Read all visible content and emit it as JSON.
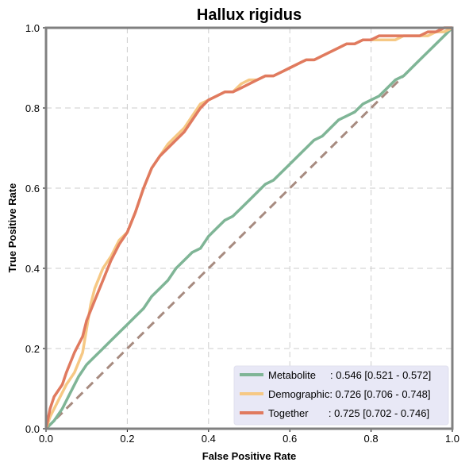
{
  "chart_data": {
    "type": "line",
    "title": "Hallux rigidus",
    "xlabel": "False Positive Rate",
    "ylabel": "True Positive Rate",
    "xlim": [
      0,
      1
    ],
    "ylim": [
      0,
      1
    ],
    "x_ticks": [
      "0.0",
      "0.2",
      "0.4",
      "0.6",
      "0.8",
      "1.0"
    ],
    "y_ticks": [
      "0.0",
      "0.2",
      "0.4",
      "0.6",
      "0.8",
      "1.0"
    ],
    "grid": true,
    "legend_position": "bottom-right",
    "series": [
      {
        "name": "Metabolite",
        "legend_label": "Metabolite     : 0.546 [0.521 - 0.572]",
        "color": "#7fb596",
        "points": [
          [
            0,
            0
          ],
          [
            0.02,
            0.02
          ],
          [
            0.04,
            0.05
          ],
          [
            0.06,
            0.09
          ],
          [
            0.08,
            0.13
          ],
          [
            0.1,
            0.16
          ],
          [
            0.12,
            0.18
          ],
          [
            0.14,
            0.2
          ],
          [
            0.16,
            0.22
          ],
          [
            0.18,
            0.24
          ],
          [
            0.2,
            0.26
          ],
          [
            0.22,
            0.28
          ],
          [
            0.24,
            0.3
          ],
          [
            0.26,
            0.33
          ],
          [
            0.28,
            0.35
          ],
          [
            0.3,
            0.37
          ],
          [
            0.32,
            0.4
          ],
          [
            0.34,
            0.42
          ],
          [
            0.36,
            0.44
          ],
          [
            0.38,
            0.45
          ],
          [
            0.4,
            0.48
          ],
          [
            0.42,
            0.5
          ],
          [
            0.44,
            0.52
          ],
          [
            0.46,
            0.53
          ],
          [
            0.48,
            0.55
          ],
          [
            0.5,
            0.57
          ],
          [
            0.52,
            0.59
          ],
          [
            0.54,
            0.61
          ],
          [
            0.56,
            0.62
          ],
          [
            0.58,
            0.64
          ],
          [
            0.6,
            0.66
          ],
          [
            0.62,
            0.68
          ],
          [
            0.64,
            0.7
          ],
          [
            0.66,
            0.72
          ],
          [
            0.68,
            0.73
          ],
          [
            0.7,
            0.75
          ],
          [
            0.72,
            0.77
          ],
          [
            0.74,
            0.78
          ],
          [
            0.76,
            0.79
          ],
          [
            0.78,
            0.81
          ],
          [
            0.8,
            0.82
          ],
          [
            0.82,
            0.83
          ],
          [
            0.84,
            0.85
          ],
          [
            0.86,
            0.87
          ],
          [
            0.88,
            0.88
          ],
          [
            0.9,
            0.9
          ],
          [
            0.92,
            0.92
          ],
          [
            0.94,
            0.94
          ],
          [
            0.96,
            0.96
          ],
          [
            0.98,
            0.98
          ],
          [
            1.0,
            1.0
          ]
        ]
      },
      {
        "name": "Demographic",
        "legend_label": "Demographic: 0.726 [0.706 - 0.748]",
        "color": "#f6c884",
        "points": [
          [
            0,
            0
          ],
          [
            0.01,
            0.03
          ],
          [
            0.03,
            0.07
          ],
          [
            0.05,
            0.11
          ],
          [
            0.07,
            0.14
          ],
          [
            0.09,
            0.19
          ],
          [
            0.1,
            0.25
          ],
          [
            0.11,
            0.31
          ],
          [
            0.12,
            0.35
          ],
          [
            0.14,
            0.4
          ],
          [
            0.16,
            0.43
          ],
          [
            0.18,
            0.47
          ],
          [
            0.2,
            0.49
          ],
          [
            0.22,
            0.54
          ],
          [
            0.24,
            0.6
          ],
          [
            0.26,
            0.65
          ],
          [
            0.28,
            0.68
          ],
          [
            0.3,
            0.71
          ],
          [
            0.32,
            0.73
          ],
          [
            0.34,
            0.75
          ],
          [
            0.36,
            0.78
          ],
          [
            0.38,
            0.81
          ],
          [
            0.4,
            0.82
          ],
          [
            0.42,
            0.83
          ],
          [
            0.44,
            0.84
          ],
          [
            0.46,
            0.84
          ],
          [
            0.48,
            0.86
          ],
          [
            0.5,
            0.87
          ],
          [
            0.52,
            0.87
          ],
          [
            0.54,
            0.88
          ],
          [
            0.56,
            0.88
          ],
          [
            0.58,
            0.89
          ],
          [
            0.6,
            0.9
          ],
          [
            0.62,
            0.91
          ],
          [
            0.64,
            0.92
          ],
          [
            0.66,
            0.92
          ],
          [
            0.68,
            0.93
          ],
          [
            0.7,
            0.94
          ],
          [
            0.72,
            0.95
          ],
          [
            0.74,
            0.96
          ],
          [
            0.76,
            0.96
          ],
          [
            0.78,
            0.97
          ],
          [
            0.8,
            0.97
          ],
          [
            0.82,
            0.97
          ],
          [
            0.84,
            0.97
          ],
          [
            0.86,
            0.97
          ],
          [
            0.88,
            0.98
          ],
          [
            0.9,
            0.98
          ],
          [
            0.92,
            0.98
          ],
          [
            0.94,
            0.98
          ],
          [
            0.96,
            0.99
          ],
          [
            0.98,
            0.99
          ],
          [
            1.0,
            1.0
          ]
        ]
      },
      {
        "name": "Together",
        "legend_label": "Together       : 0.725 [0.702 - 0.746]",
        "color": "#e07a5f",
        "points": [
          [
            0,
            0
          ],
          [
            0.01,
            0.05
          ],
          [
            0.02,
            0.08
          ],
          [
            0.04,
            0.11
          ],
          [
            0.05,
            0.14
          ],
          [
            0.07,
            0.19
          ],
          [
            0.09,
            0.23
          ],
          [
            0.1,
            0.27
          ],
          [
            0.12,
            0.32
          ],
          [
            0.14,
            0.37
          ],
          [
            0.16,
            0.42
          ],
          [
            0.18,
            0.46
          ],
          [
            0.2,
            0.49
          ],
          [
            0.22,
            0.54
          ],
          [
            0.24,
            0.6
          ],
          [
            0.26,
            0.65
          ],
          [
            0.28,
            0.68
          ],
          [
            0.3,
            0.7
          ],
          [
            0.32,
            0.72
          ],
          [
            0.34,
            0.74
          ],
          [
            0.36,
            0.77
          ],
          [
            0.38,
            0.8
          ],
          [
            0.4,
            0.82
          ],
          [
            0.42,
            0.83
          ],
          [
            0.44,
            0.84
          ],
          [
            0.46,
            0.84
          ],
          [
            0.48,
            0.85
          ],
          [
            0.5,
            0.86
          ],
          [
            0.52,
            0.87
          ],
          [
            0.54,
            0.88
          ],
          [
            0.56,
            0.88
          ],
          [
            0.58,
            0.89
          ],
          [
            0.6,
            0.9
          ],
          [
            0.62,
            0.91
          ],
          [
            0.64,
            0.92
          ],
          [
            0.66,
            0.92
          ],
          [
            0.68,
            0.93
          ],
          [
            0.7,
            0.94
          ],
          [
            0.72,
            0.95
          ],
          [
            0.74,
            0.96
          ],
          [
            0.76,
            0.96
          ],
          [
            0.78,
            0.97
          ],
          [
            0.8,
            0.97
          ],
          [
            0.82,
            0.98
          ],
          [
            0.84,
            0.98
          ],
          [
            0.86,
            0.98
          ],
          [
            0.88,
            0.98
          ],
          [
            0.9,
            0.98
          ],
          [
            0.92,
            0.98
          ],
          [
            0.94,
            0.99
          ],
          [
            0.96,
            0.99
          ],
          [
            0.98,
            1.0
          ],
          [
            1.0,
            1.0
          ]
        ]
      }
    ],
    "diagonal": {
      "color": "#a78b80",
      "points": [
        [
          0,
          0
        ],
        [
          1,
          1
        ]
      ]
    }
  },
  "colors": {
    "legend_background": "#e8e8f6",
    "grid": "#cccccc",
    "frame": "#808080"
  }
}
